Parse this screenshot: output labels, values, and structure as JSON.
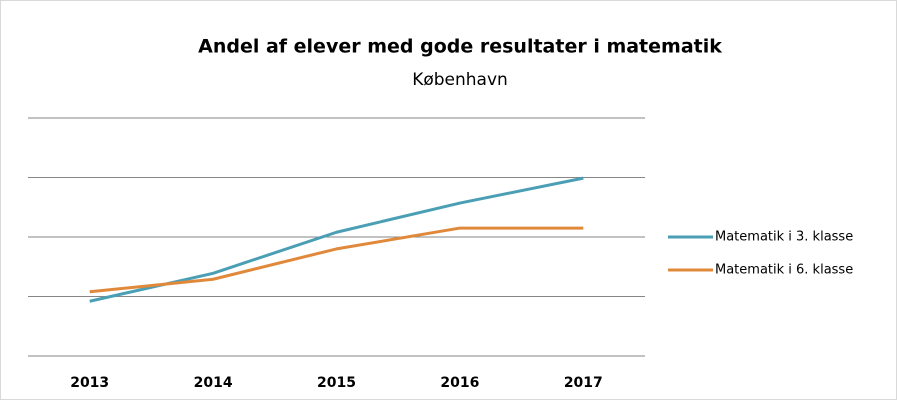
{
  "chart_data": {
    "type": "line",
    "title": "Andel af elever med gode resultater i matematik",
    "subtitle": "København",
    "categories": [
      "2013",
      "2014",
      "2015",
      "2016",
      "2017"
    ],
    "series": [
      {
        "name": "Matematik i 3. klasse",
        "color": "#4a9fb5",
        "values": [
          0.92,
          1.39,
          2.08,
          2.57,
          2.99
        ]
      },
      {
        "name": "Matematik i 6. klasse",
        "color": "#e0893b",
        "values": [
          1.08,
          1.29,
          1.8,
          2.15,
          2.15
        ]
      }
    ],
    "ylim": [
      0,
      4
    ],
    "yticks": [
      0,
      1,
      2,
      3,
      4
    ],
    "grid": true,
    "legend": "right"
  }
}
